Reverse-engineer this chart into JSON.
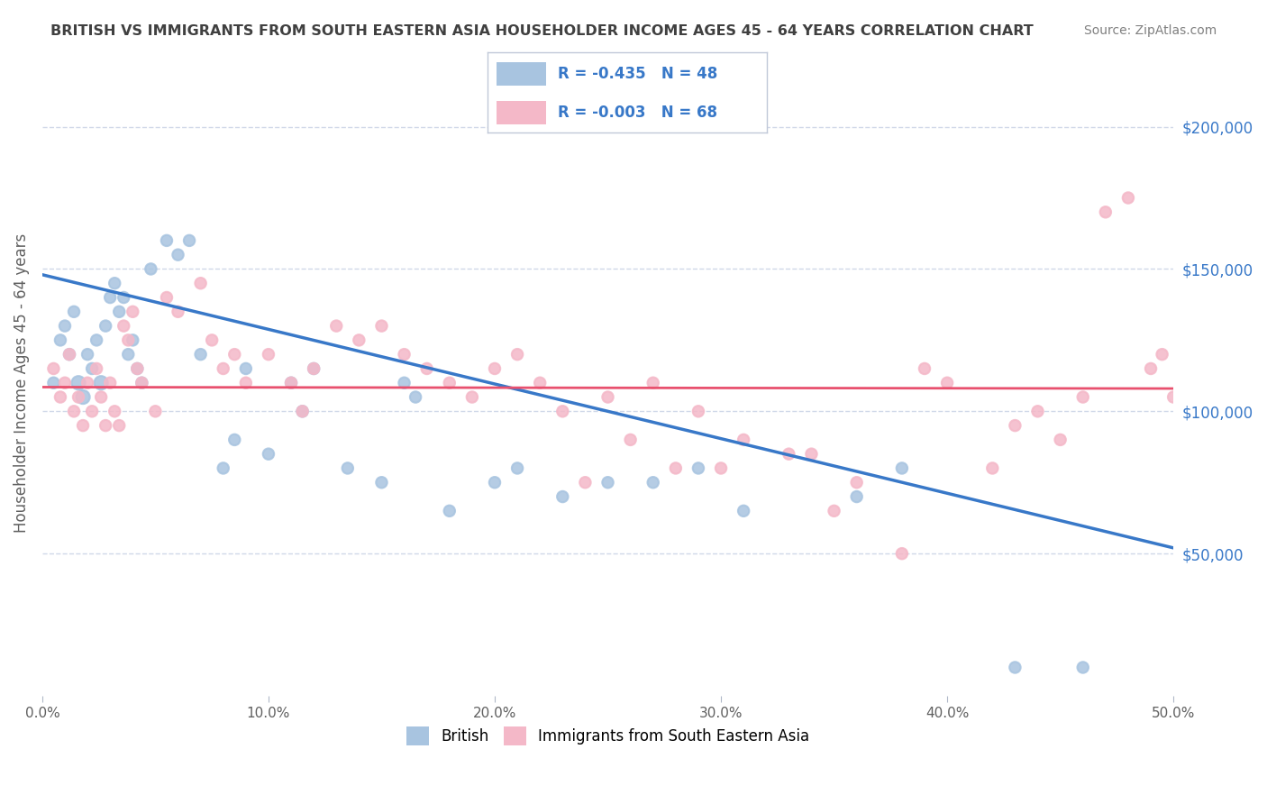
{
  "title": "BRITISH VS IMMIGRANTS FROM SOUTH EASTERN ASIA HOUSEHOLDER INCOME AGES 45 - 64 YEARS CORRELATION CHART",
  "source": "Source: ZipAtlas.com",
  "xlabel_bottom": "",
  "ylabel": "Householder Income Ages 45 - 64 years",
  "xlim": [
    0.0,
    0.5
  ],
  "ylim": [
    0,
    220000
  ],
  "xticks": [
    0.0,
    0.1,
    0.2,
    0.3,
    0.4,
    0.5
  ],
  "xticklabels": [
    "0.0%",
    "10.0%",
    "20.0%",
    "30.0%",
    "40.0%",
    "50.0%"
  ],
  "yticks_right": [
    50000,
    100000,
    150000,
    200000
  ],
  "ytick_labels_right": [
    "$50,000",
    "$100,000",
    "$150,000",
    "$200,000"
  ],
  "british_R": "-0.435",
  "british_N": "48",
  "immigrants_R": "-0.003",
  "immigrants_N": "68",
  "british_color": "#a8c4e0",
  "british_line_color": "#3878c8",
  "immigrants_color": "#f4b8c8",
  "immigrants_line_color": "#e8506e",
  "background_color": "#ffffff",
  "grid_color": "#d0d8e8",
  "title_color": "#404040",
  "source_color": "#808080",
  "legend_text_color": "#3878c8",
  "british_scatter_x": [
    0.005,
    0.008,
    0.01,
    0.012,
    0.014,
    0.016,
    0.018,
    0.02,
    0.022,
    0.024,
    0.026,
    0.028,
    0.03,
    0.032,
    0.034,
    0.036,
    0.038,
    0.04,
    0.042,
    0.044,
    0.048,
    0.055,
    0.06,
    0.065,
    0.07,
    0.08,
    0.085,
    0.09,
    0.1,
    0.11,
    0.115,
    0.12,
    0.135,
    0.15,
    0.16,
    0.165,
    0.18,
    0.2,
    0.21,
    0.23,
    0.25,
    0.27,
    0.29,
    0.31,
    0.36,
    0.38,
    0.43,
    0.46
  ],
  "british_scatter_y": [
    110000,
    125000,
    130000,
    120000,
    135000,
    110000,
    105000,
    120000,
    115000,
    125000,
    110000,
    130000,
    140000,
    145000,
    135000,
    140000,
    120000,
    125000,
    115000,
    110000,
    150000,
    160000,
    155000,
    160000,
    120000,
    80000,
    90000,
    115000,
    85000,
    110000,
    100000,
    115000,
    80000,
    75000,
    110000,
    105000,
    65000,
    75000,
    80000,
    70000,
    75000,
    75000,
    80000,
    65000,
    70000,
    80000,
    10000,
    10000
  ],
  "british_scatter_sizes": [
    80,
    80,
    80,
    80,
    80,
    120,
    120,
    80,
    80,
    80,
    120,
    80,
    80,
    80,
    80,
    80,
    80,
    80,
    80,
    80,
    80,
    80,
    80,
    80,
    80,
    80,
    80,
    80,
    80,
    80,
    80,
    80,
    80,
    80,
    80,
    80,
    80,
    80,
    80,
    80,
    80,
    80,
    80,
    80,
    80,
    80,
    80,
    80
  ],
  "immigrants_scatter_x": [
    0.005,
    0.008,
    0.01,
    0.012,
    0.014,
    0.016,
    0.018,
    0.02,
    0.022,
    0.024,
    0.026,
    0.028,
    0.03,
    0.032,
    0.034,
    0.036,
    0.038,
    0.04,
    0.042,
    0.044,
    0.05,
    0.055,
    0.06,
    0.07,
    0.075,
    0.08,
    0.085,
    0.09,
    0.1,
    0.11,
    0.115,
    0.12,
    0.13,
    0.14,
    0.15,
    0.16,
    0.17,
    0.18,
    0.19,
    0.2,
    0.21,
    0.22,
    0.23,
    0.24,
    0.25,
    0.26,
    0.27,
    0.28,
    0.29,
    0.3,
    0.31,
    0.33,
    0.34,
    0.35,
    0.36,
    0.38,
    0.39,
    0.4,
    0.42,
    0.43,
    0.44,
    0.45,
    0.46,
    0.47,
    0.48,
    0.49,
    0.495,
    0.5
  ],
  "immigrants_scatter_y": [
    115000,
    105000,
    110000,
    120000,
    100000,
    105000,
    95000,
    110000,
    100000,
    115000,
    105000,
    95000,
    110000,
    100000,
    95000,
    130000,
    125000,
    135000,
    115000,
    110000,
    100000,
    140000,
    135000,
    145000,
    125000,
    115000,
    120000,
    110000,
    120000,
    110000,
    100000,
    115000,
    130000,
    125000,
    130000,
    120000,
    115000,
    110000,
    105000,
    115000,
    120000,
    110000,
    100000,
    75000,
    105000,
    90000,
    110000,
    80000,
    100000,
    80000,
    90000,
    85000,
    85000,
    65000,
    75000,
    50000,
    115000,
    110000,
    80000,
    95000,
    100000,
    90000,
    105000,
    170000,
    175000,
    115000,
    120000,
    105000
  ],
  "immigrants_scatter_sizes": [
    80,
    80,
    80,
    80,
    80,
    80,
    80,
    80,
    80,
    80,
    80,
    80,
    80,
    80,
    80,
    80,
    80,
    80,
    80,
    80,
    80,
    80,
    80,
    80,
    80,
    80,
    80,
    80,
    80,
    80,
    80,
    80,
    80,
    80,
    80,
    80,
    80,
    80,
    80,
    80,
    80,
    80,
    80,
    80,
    80,
    80,
    80,
    80,
    80,
    80,
    80,
    80,
    80,
    80,
    80,
    80,
    80,
    80,
    80,
    80,
    80,
    80,
    80,
    80,
    80,
    80,
    80,
    80
  ],
  "british_trend_x": [
    0.0,
    0.5
  ],
  "british_trend_y": [
    148000,
    52000
  ],
  "immigrants_trend_y": [
    108500,
    108000
  ]
}
